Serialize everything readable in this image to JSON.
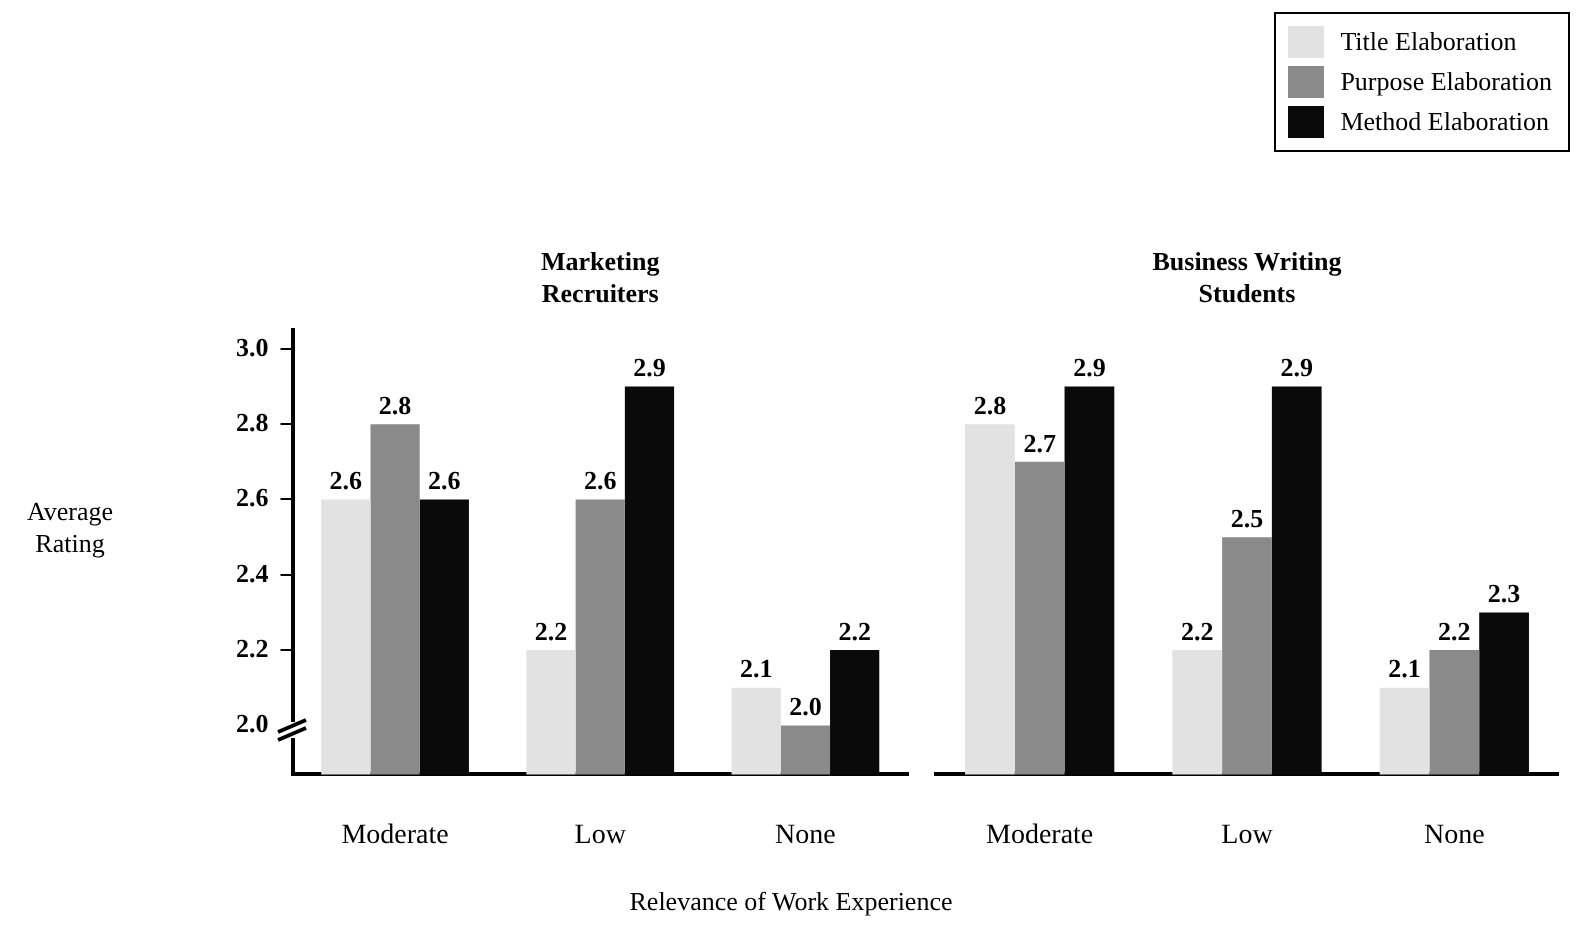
{
  "chart_data": [
    {
      "type": "bar",
      "title": "Marketing Recruiters",
      "ylabel": "Average Rating",
      "xlabel": "Relevance of Work Experience",
      "categories": [
        "Moderate",
        "Low",
        "None"
      ],
      "series": [
        {
          "name": "Title Elaboration",
          "color": "#e2e2e2",
          "values": [
            2.6,
            2.2,
            2.1
          ],
          "value_labels": [
            "2.6",
            "2.2",
            "2.1"
          ]
        },
        {
          "name": "Purpose Elaboration",
          "color": "#8a8a8a",
          "values": [
            2.8,
            2.6,
            2.0
          ],
          "value_labels": [
            "2.8",
            "2.6",
            "2.0"
          ]
        },
        {
          "name": "Method Elaboration",
          "color": "#0a0a0a",
          "values": [
            2.6,
            2.9,
            2.2
          ],
          "value_labels": [
            "2.6",
            "2.9",
            "2.2"
          ]
        }
      ],
      "ylim": [
        1.87,
        3.05
      ],
      "yticks": [
        {
          "value": 2,
          "label": "2.0"
        },
        2.2,
        2.4,
        2.6,
        2.8,
        {
          "value": 3,
          "label": "3.0"
        }
      ],
      "grid": false,
      "legend": "top right"
    },
    {
      "type": "bar",
      "title": "Business Writing Students",
      "categories": [
        "Moderate",
        "Low",
        "None"
      ],
      "series": [
        {
          "color": "#e2e2e2",
          "values": [
            2.8,
            2.2,
            2.1
          ],
          "value_labels": [
            "2.8",
            "2.2",
            "2.1"
          ]
        },
        {
          "color": "#8a8a8a",
          "values": [
            2.7,
            2.5,
            2.2
          ],
          "value_labels": [
            "2.7",
            "2.5",
            "2.2"
          ]
        },
        {
          "color": "#0a0a0a",
          "values": [
            2.9,
            2.9,
            2.3
          ],
          "value_labels": [
            "2.9",
            "2.9",
            "2.3"
          ]
        }
      ],
      "grid": false,
      "tick_labels": "x"
    }
  ]
}
